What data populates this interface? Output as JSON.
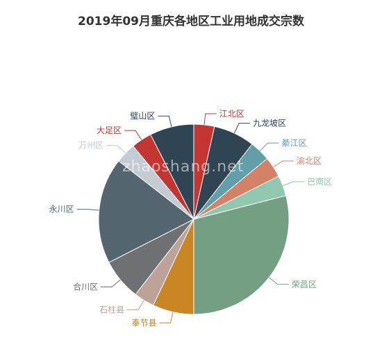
{
  "chart_data": {
    "type": "pie",
    "title": "2019年09月重庆各地区工业用地成交宗数",
    "watermark": "zhaoshang.net",
    "slices": [
      {
        "label": "江北区",
        "value": 3.5,
        "color": "#c23531"
      },
      {
        "label": "九龙坡区",
        "value": 7.0,
        "color": "#2f4554"
      },
      {
        "label": "綦江区",
        "value": 3.5,
        "color": "#61a0a8"
      },
      {
        "label": "渝北区",
        "value": 3.5,
        "color": "#d48265"
      },
      {
        "label": "巴南区",
        "value": 3.5,
        "color": "#91c7ae"
      },
      {
        "label": "荣昌区",
        "value": 29.0,
        "color": "#749f83"
      },
      {
        "label": "奉节县",
        "value": 7.0,
        "color": "#ca8622"
      },
      {
        "label": "石柱县",
        "value": 3.5,
        "color": "#bda29a"
      },
      {
        "label": "合川区",
        "value": 7.0,
        "color": "#6e7074"
      },
      {
        "label": "永川区",
        "value": 18.0,
        "color": "#546570"
      },
      {
        "label": "万州区",
        "value": 3.5,
        "color": "#c4ccd3"
      },
      {
        "label": "大足区",
        "value": 3.5,
        "color": "#c23531"
      },
      {
        "label": "璧山区",
        "value": 7.5,
        "color": "#2f4554"
      }
    ]
  }
}
